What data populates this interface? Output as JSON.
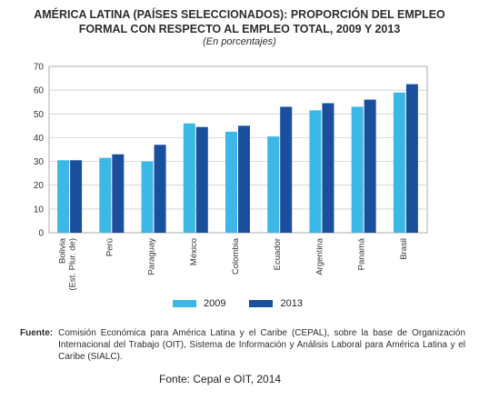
{
  "chart_data": {
    "type": "bar",
    "title_line1": "AMÉRICA LATINA (PAÍSES SELECCIONADOS): PROPORCIÓN DEL EMPLEO",
    "title_line2": "FORMAL CON RESPECTO AL EMPLEO TOTAL, 2009 Y 2013",
    "subtitle": "(En porcentajes)",
    "categories": [
      [
        "Bolivia",
        "(Est. Plur. de)"
      ],
      [
        "Perú"
      ],
      [
        "Paraguay"
      ],
      [
        "México"
      ],
      [
        "Colombia"
      ],
      [
        "Ecuador"
      ],
      [
        "Argentina"
      ],
      [
        "Panamá"
      ],
      [
        "Brasil"
      ]
    ],
    "series": [
      {
        "name": "2009",
        "color": "#3bb8e6",
        "values": [
          30.5,
          31.5,
          30,
          46,
          42.5,
          40.5,
          51.5,
          53,
          59
        ]
      },
      {
        "name": "2013",
        "color": "#1a4f9e",
        "values": [
          30.5,
          33,
          37,
          44.5,
          45,
          53,
          54.5,
          56,
          62.5
        ]
      }
    ],
    "ylim": [
      0,
      70
    ],
    "yticks": [
      0,
      10,
      20,
      30,
      40,
      50,
      60,
      70
    ],
    "grid": true,
    "legend": "bottom"
  },
  "source": {
    "label": "Fuente:",
    "text": "Comisión Económica para América Latina y el Caribe (CEPAL), sobre la base de Organización Internacional del Trabajo (OIT), Sistema de Información y Análisis Laboral para América Latina y el Caribe (SIALC)."
  },
  "caption": "Fonte: Cepal e OIT, 2014"
}
